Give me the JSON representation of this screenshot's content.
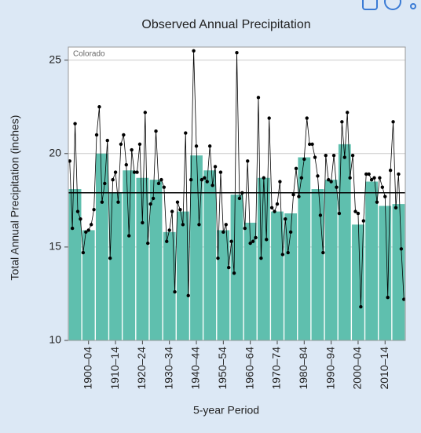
{
  "chart_data": {
    "type": "bar",
    "title": "Observed Annual Precipitation",
    "x_label": "5-year Period",
    "y_label": "Total Annual Precipitation (inches)",
    "annotation": "Colorado",
    "categories": [
      null,
      "1900–04",
      null,
      "1910–14",
      null,
      "1920–24",
      null,
      "1930–34",
      null,
      "1940–44",
      null,
      "1950–54",
      null,
      "1960–64",
      null,
      "1970–74",
      null,
      "1980–84",
      null,
      "1990–94",
      null,
      "2000–04",
      null,
      "2010–14",
      null
    ],
    "values": [
      18.1,
      15.9,
      20.0,
      17.9,
      19.1,
      18.7,
      18.6,
      15.8,
      16.9,
      19.9,
      19.1,
      15.9,
      17.8,
      16.3,
      18.7,
      16.9,
      16.8,
      19.8,
      18.1,
      18.6,
      20.5,
      16.2,
      18.5,
      17.2,
      17.3
    ],
    "color": "#5fbfae",
    "annual": {
      "color": "#000000",
      "x": [
        1895,
        1896,
        1897,
        1898,
        1899,
        1900,
        1901,
        1902,
        1903,
        1904,
        1905,
        1906,
        1907,
        1908,
        1909,
        1910,
        1911,
        1912,
        1913,
        1914,
        1915,
        1916,
        1917,
        1918,
        1919,
        1920,
        1921,
        1922,
        1923,
        1924,
        1925,
        1926,
        1927,
        1928,
        1929,
        1930,
        1931,
        1932,
        1933,
        1934,
        1935,
        1936,
        1937,
        1938,
        1939,
        1940,
        1941,
        1942,
        1943,
        1944,
        1945,
        1946,
        1947,
        1948,
        1949,
        1950,
        1951,
        1952,
        1953,
        1954,
        1955,
        1956,
        1957,
        1958,
        1959,
        1960,
        1961,
        1962,
        1963,
        1964,
        1965,
        1966,
        1967,
        1968,
        1969,
        1970,
        1971,
        1972,
        1973,
        1974,
        1975,
        1976,
        1977,
        1978,
        1979,
        1980,
        1981,
        1982,
        1983,
        1984,
        1985,
        1986,
        1987,
        1988,
        1989,
        1990,
        1991,
        1992,
        1993,
        1994,
        1995,
        1996,
        1997,
        1998,
        1999,
        2000,
        2001,
        2002,
        2003,
        2004,
        2005,
        2006,
        2007,
        2008,
        2009,
        2010,
        2011,
        2012,
        2013,
        2014,
        2015,
        2016,
        2017,
        2018,
        2019
      ],
      "values": [
        19.6,
        16.0,
        21.6,
        16.9,
        16.5,
        14.7,
        15.8,
        15.9,
        16.2,
        17.0,
        21.0,
        22.5,
        17.4,
        18.4,
        20.7,
        14.4,
        18.6,
        19.0,
        17.4,
        20.5,
        21.0,
        19.4,
        15.6,
        20.2,
        19.0,
        19.0,
        20.5,
        16.3,
        22.2,
        15.2,
        17.3,
        17.6,
        21.2,
        18.4,
        18.6,
        18.2,
        15.3,
        15.9,
        16.9,
        12.6,
        17.4,
        17.0,
        16.2,
        21.1,
        12.4,
        18.6,
        25.5,
        20.4,
        16.2,
        18.6,
        18.7,
        18.5,
        20.4,
        18.3,
        19.3,
        14.4,
        19.0,
        15.8,
        16.2,
        13.9,
        15.3,
        13.6,
        25.4,
        17.6,
        17.9,
        16.0,
        19.6,
        15.2,
        15.3,
        15.5,
        23.0,
        14.4,
        18.7,
        15.4,
        21.9,
        17.1,
        16.9,
        17.3,
        18.5,
        14.6,
        16.5,
        14.7,
        15.8,
        17.8,
        19.2,
        17.7,
        18.7,
        19.7,
        21.9,
        20.5,
        20.5,
        19.8,
        18.8,
        16.7,
        14.7,
        19.9,
        18.6,
        18.5,
        19.9,
        18.2,
        16.8,
        21.7,
        19.8,
        22.2,
        18.7,
        19.9,
        16.9,
        16.8,
        11.8,
        16.4,
        18.9,
        18.9,
        18.6,
        18.7,
        17.4,
        18.7,
        18.2,
        17.7,
        12.3,
        19.1,
        21.7,
        17.1,
        18.9,
        14.9,
        12.2
      ]
    },
    "mean": 17.9,
    "xlim": [
      1895,
      2020
    ],
    "ylim": [
      10,
      25.7
    ],
    "yticks": [
      10,
      15,
      20,
      25
    ],
    "grid": true
  }
}
